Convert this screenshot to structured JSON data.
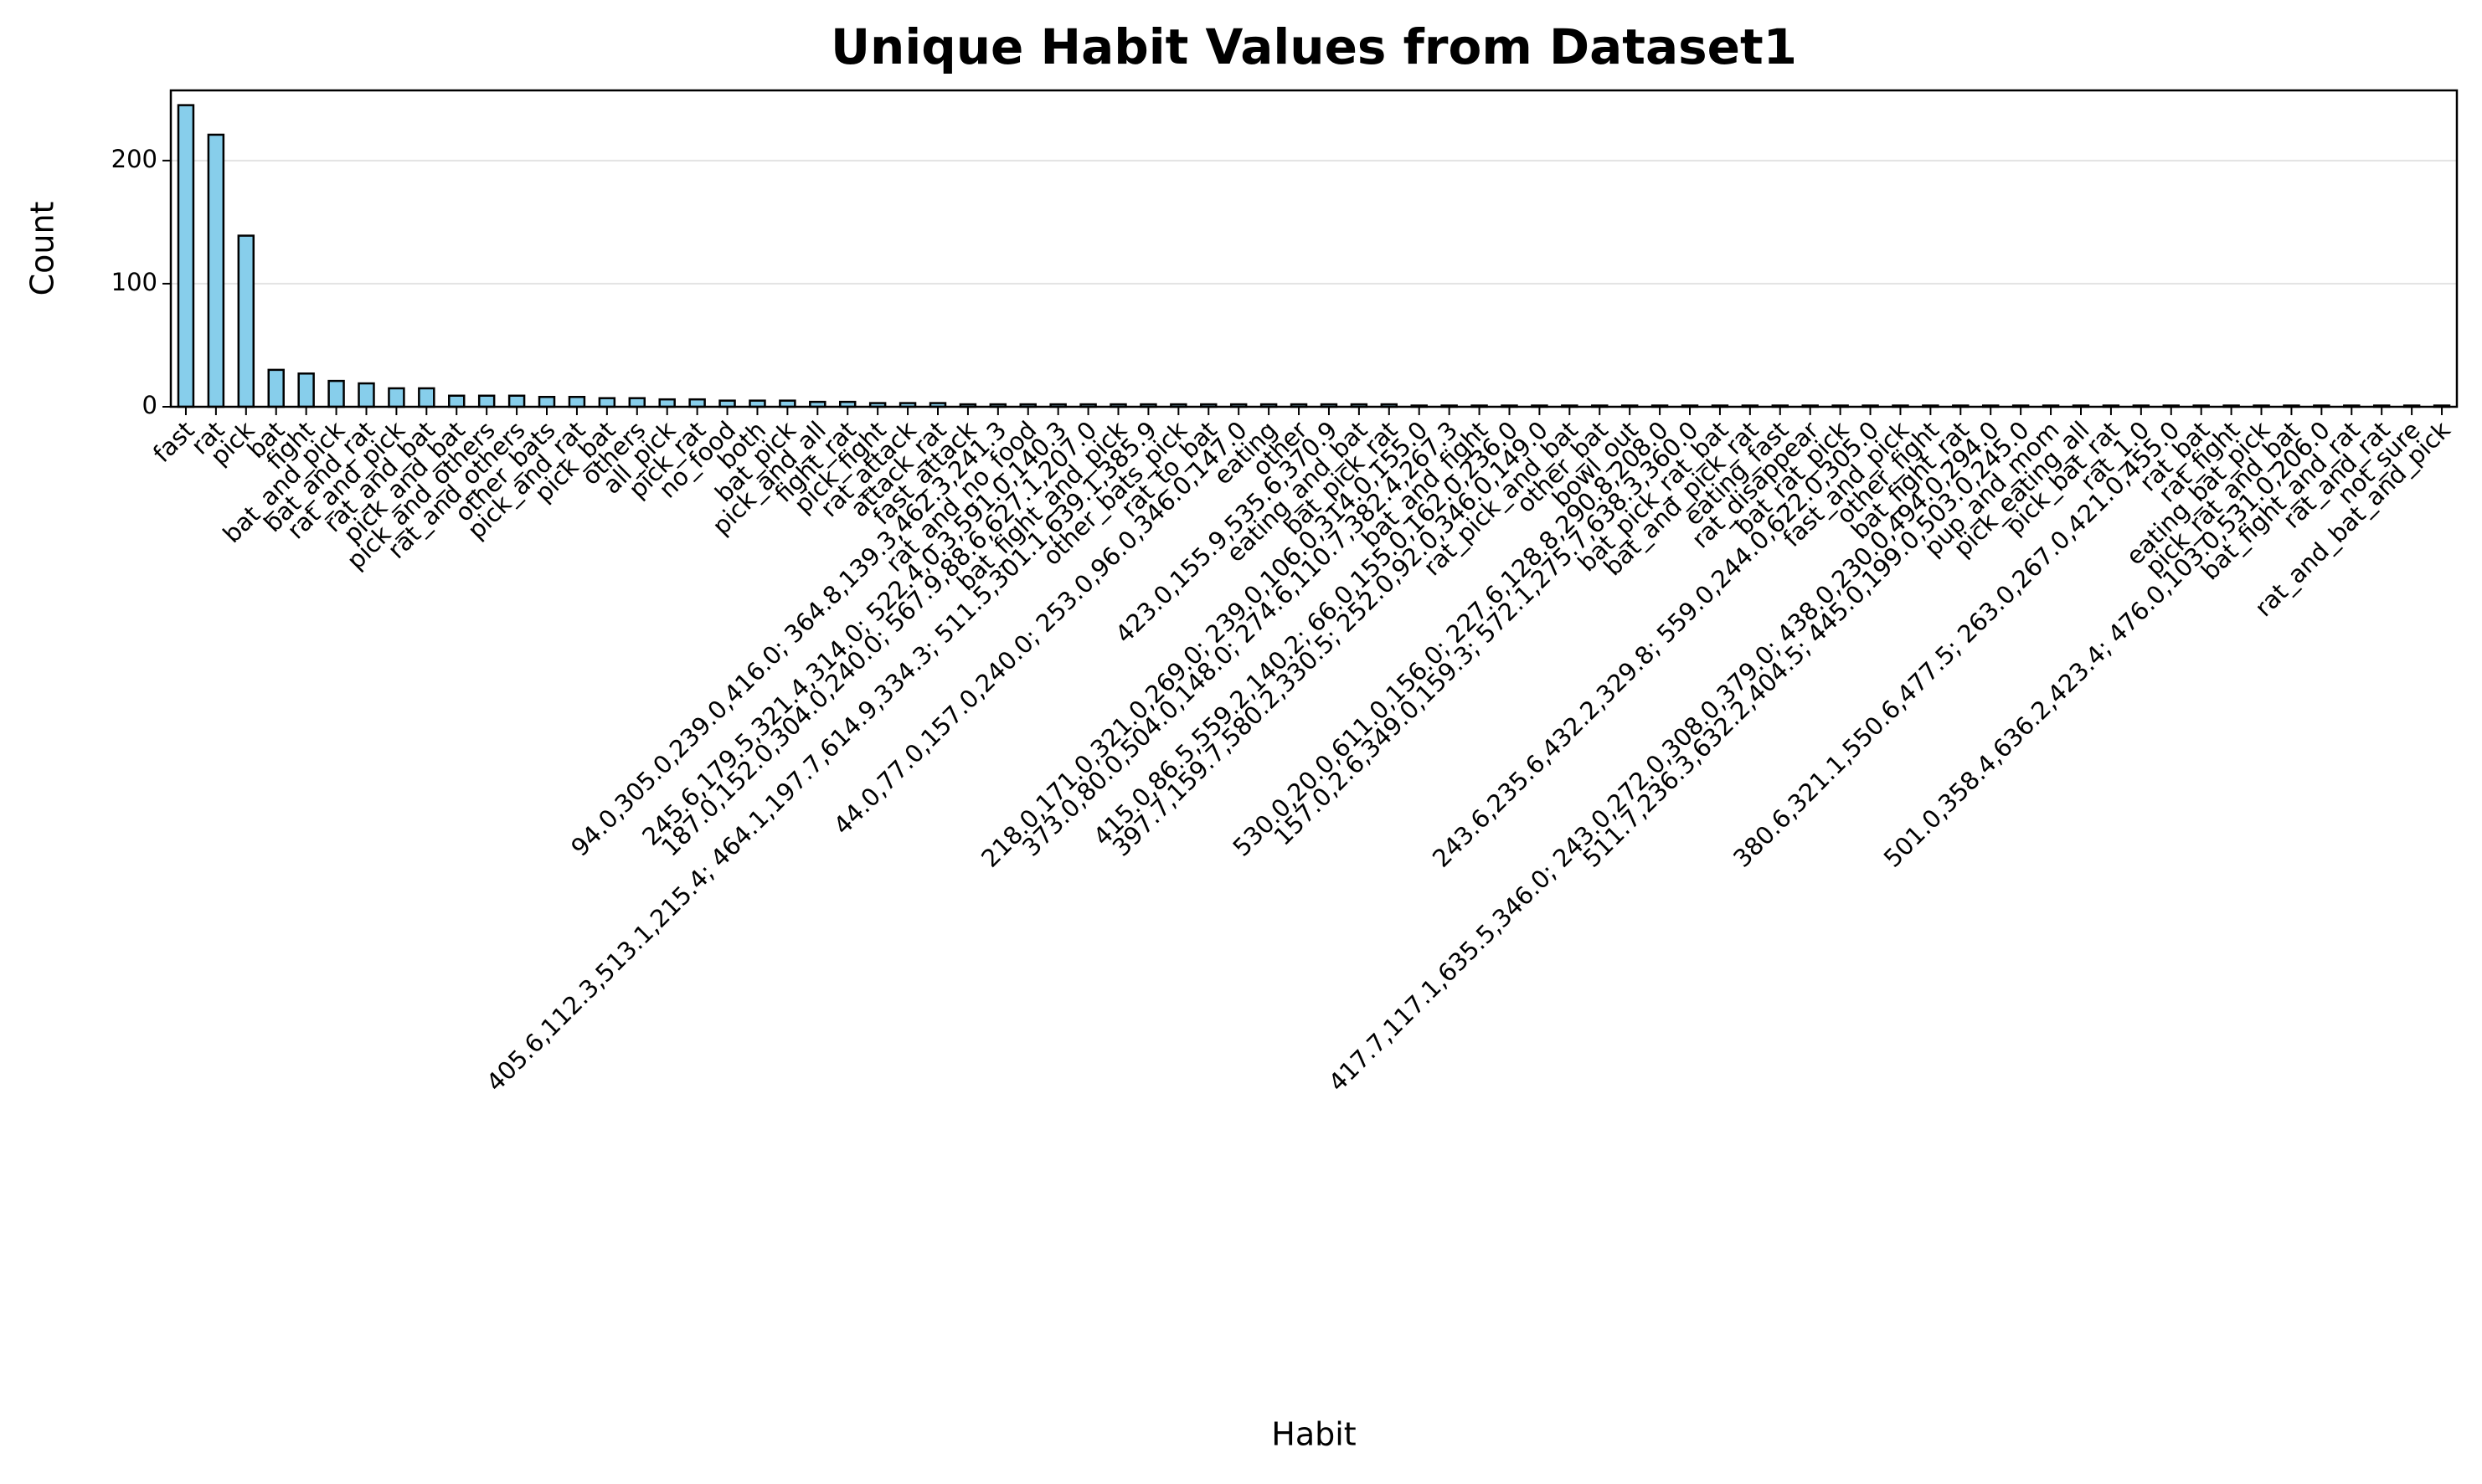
{
  "chart_data": {
    "type": "bar",
    "title": "Unique Habit Values from Dataset1",
    "x_label": "Habit",
    "y_label": "Count",
    "categories": [
      "fast",
      "rat",
      "pick",
      "bat",
      "fight",
      "bat_and_pick",
      "bat_and_rat",
      "rat_and_pick",
      "rat_and_bat",
      "pick_and_bat",
      "pick_and_others",
      "rat_and_others",
      "other_bats",
      "pick_and_rat",
      "pick_bat",
      "others",
      "all_pick",
      "pick_rat",
      "no_food",
      "both",
      "bat_pick",
      "pick_and_all",
      "fight_rat",
      "pick_fight",
      "rat_attack",
      "attack_rat",
      "fast_attack",
      "94.0,305.0,239.0,416.0; 364.8,139.3,462.3,241.3",
      "rat_and_no_food",
      "245.6,179.5,321.4,314.0; 522.4,0.3,591.0,140.3",
      "187.0,152.0,304.0,240.0; 567.9,88.6,627.1,207.0",
      "bat_fight_and_pick",
      "405.6,112.3,513.1,215.4; 464.1,197.7,614.9,334.3; 511.5,301.1,639.1,385.9",
      "other_bats_pick",
      "rat_to_bat",
      "44.0,77.0,157.0,240.0; 253.0,96.0,346.0,147.0",
      "eating",
      "other",
      "423.0,155.9,535.6,370.9",
      "eating_and_bat",
      "bat_pick_rat",
      "218.0,171.0,321.0,269.0; 239.0,106.0,314.0,155.0",
      "373.0,80.0,504.0,148.0; 274.6,110.7,382.4,267.3",
      "bat_and_fight",
      "415.0,86.5,559.2,140.2; 66.0,155.0,162.0,236.0",
      "397.7,159.7,580.2,330.5; 252.0,92.0,346.0,149.0",
      "rat_pick_and_bat",
      "other_bat",
      "bowl_out",
      "530.0,20.0,611.0,156.0; 227.6,128.8,290.8,208.0",
      "157.0,2.6,349.0,159.3; 572.1,275.7,638.3,360.0",
      "bat_pick_rat_bat",
      "bat_and_pick_rat",
      "eating_fast",
      "rat_disappear",
      "bat_rat_pick",
      "243.6,235.6,432.2,329.8; 559.0,244.0,622.0,305.0",
      "fast_and_pick",
      "other_fight",
      "bat_fight_rat",
      "417.7,117.1,635.5,346.0; 243.0,272.0,308.0,379.0; 438.0,230.0,494.0,294.0",
      "511.7,236.3,632.2,404.5; 445.0,199.0,503.0,245.0",
      "pup_and_mom",
      "pick_eating_all",
      "pick_bat_rat",
      "rat_1.0",
      "380.6,321.1,550.6,477.5; 263.0,267.0,421.0,455.0",
      "rat_bat",
      "rat_fight",
      "eating_bat_pick",
      "pick_rat_and_bat",
      "501.0,358.4,636.2,423.4; 476.0,103.0,531.0,206.0",
      "bat_fight_and_rat",
      "rat_and_rat",
      "not_sure",
      "rat_and_bat_and_pick"
    ],
    "values": [
      245,
      221,
      139,
      30,
      27,
      21,
      19,
      15,
      15,
      9,
      9,
      9,
      8,
      8,
      7,
      7,
      6,
      6,
      5,
      5,
      5,
      4,
      4,
      3,
      3,
      3,
      2,
      2,
      2,
      2,
      2,
      2,
      2,
      2,
      2,
      2,
      2,
      2,
      2,
      2,
      2,
      1,
      1,
      1,
      1,
      1,
      1,
      1,
      1,
      1,
      1,
      1,
      1,
      1,
      1,
      1,
      1,
      1,
      1,
      1,
      1,
      1,
      1,
      1,
      1,
      1,
      1,
      1,
      1,
      1,
      1,
      1,
      1,
      1,
      1,
      1
    ],
    "color": "#87ceeb",
    "edge_color": "#000000",
    "ylim": [
      0,
      257
    ],
    "yticks": [
      0,
      100,
      200
    ],
    "grid": true
  }
}
